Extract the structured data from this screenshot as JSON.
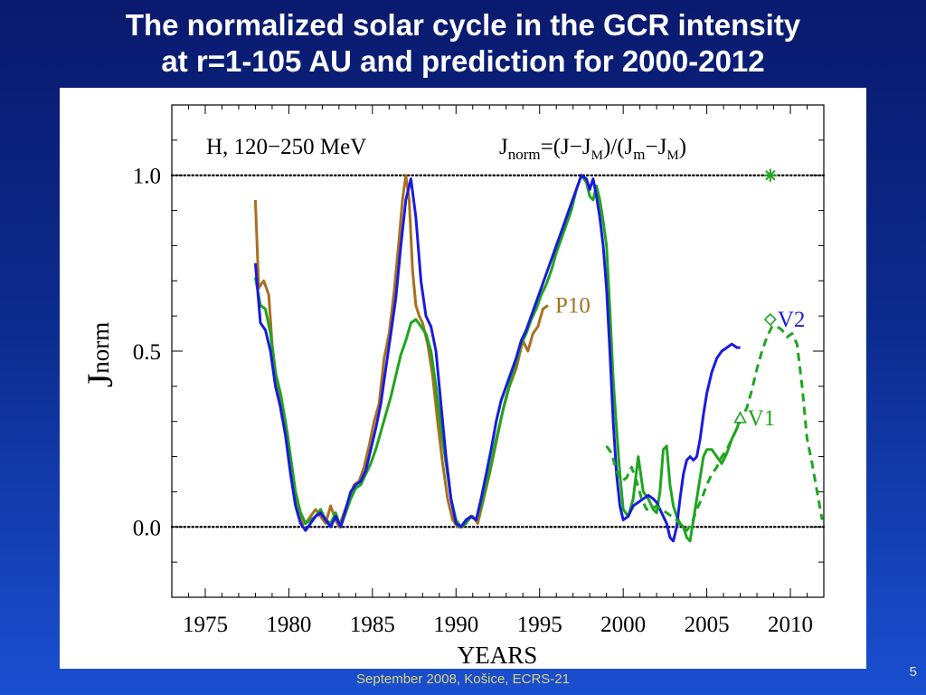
{
  "slide": {
    "title_line1": "The normalized solar cycle in the GCR intensity",
    "title_line2": "at r=1-105 AU and prediction for 2000-2012",
    "footer": "September 2008, Košice, ECRS-21",
    "page_number": "5"
  },
  "chart_data": {
    "type": "line",
    "panel_label": "H,  120−250  MeV",
    "formula": {
      "base": "J",
      "sub": "norm",
      "rest": "=(J−J",
      "sub_M": "M",
      "mid": ")/(J",
      "sub_m": "m",
      "minus": "−J",
      "sub_M2": "M",
      "close": ")"
    },
    "xlabel": "YEARS",
    "ylabel_main": "J",
    "ylabel_sub": "norm",
    "xlim": [
      1973.0,
      2012.0
    ],
    "ylim": [
      -0.2,
      1.2
    ],
    "xticks": [
      1975,
      1980,
      1985,
      1990,
      1995,
      2000,
      2005,
      2010
    ],
    "xtick_labels": [
      "1975",
      "1980",
      "1985",
      "1990",
      "1995",
      "2000",
      "2005",
      "2010"
    ],
    "yticks": [
      0.0,
      0.5,
      1.0
    ],
    "ytick_labels": [
      "0.0",
      "0.5",
      "1.0"
    ],
    "reference_lines": [
      0.0,
      1.0
    ],
    "colors": {
      "blue": "#1a1adf",
      "green": "#1fa51f",
      "brown": "#a87020",
      "black": "#000000"
    },
    "series": [
      {
        "name": "P10",
        "color": "#a87020",
        "style": "solid",
        "x": [
          1978.0,
          1978.2,
          1978.5,
          1978.8,
          1979.0,
          1979.3,
          1979.6,
          1979.9,
          1980.2,
          1980.5,
          1980.8,
          1981.0,
          1981.3,
          1981.6,
          1981.9,
          1982.2,
          1982.5,
          1982.8,
          1983.0,
          1983.3,
          1983.6,
          1983.9,
          1984.2,
          1984.5,
          1984.8,
          1985.1,
          1985.4,
          1985.7,
          1986.0,
          1986.3,
          1986.6,
          1986.8,
          1987.0,
          1987.2,
          1987.4,
          1987.6,
          1987.8,
          1988.0,
          1988.3,
          1988.6,
          1988.9,
          1989.2,
          1989.5,
          1989.8,
          1990.1,
          1990.4,
          1990.7,
          1991.0,
          1991.3,
          1991.6,
          1992.0,
          1992.4,
          1992.8,
          1993.2,
          1993.6,
          1994.0,
          1994.3,
          1994.6,
          1994.9,
          1995.2,
          1995.5
        ],
        "y": [
          0.93,
          0.68,
          0.7,
          0.66,
          0.52,
          0.4,
          0.31,
          0.27,
          0.16,
          0.06,
          0.01,
          0.01,
          0.03,
          0.05,
          0.03,
          0.01,
          0.06,
          0.02,
          0.0,
          0.04,
          0.08,
          0.12,
          0.13,
          0.17,
          0.23,
          0.3,
          0.35,
          0.48,
          0.55,
          0.67,
          0.82,
          0.93,
          1.0,
          0.93,
          0.73,
          0.63,
          0.6,
          0.58,
          0.52,
          0.43,
          0.3,
          0.18,
          0.08,
          0.02,
          0.0,
          0.0,
          0.02,
          0.03,
          0.01,
          0.07,
          0.15,
          0.24,
          0.33,
          0.4,
          0.45,
          0.53,
          0.5,
          0.55,
          0.57,
          0.62,
          0.63
        ]
      },
      {
        "name": "",
        "color": "#1fa51f",
        "style": "solid",
        "x": [
          1978.0,
          1978.3,
          1978.6,
          1978.9,
          1979.2,
          1979.5,
          1979.8,
          1980.1,
          1980.4,
          1980.7,
          1981.0,
          1981.3,
          1981.6,
          1981.9,
          1982.2,
          1982.5,
          1982.8,
          1983.1,
          1983.4,
          1983.7,
          1984.0,
          1984.3,
          1984.6,
          1984.9,
          1985.2,
          1985.5,
          1985.8,
          1986.1,
          1986.4,
          1986.7,
          1987.0,
          1987.3,
          1987.6,
          1987.9,
          1988.2,
          1988.5,
          1988.8,
          1989.1,
          1989.4,
          1989.7,
          1990.0,
          1990.3,
          1990.6,
          1990.9,
          1991.2,
          1991.5,
          1991.8,
          1992.1,
          1992.4,
          1992.7,
          1993.0,
          1993.3,
          1993.6,
          1993.9,
          1994.2,
          1994.5,
          1994.8,
          1995.1,
          1995.4,
          1995.7,
          1996.0,
          1996.3,
          1996.6,
          1996.9,
          1997.2,
          1997.5,
          1997.8,
          1998.0,
          1998.2,
          1998.4,
          1998.6,
          1998.8,
          1999.0,
          1999.2,
          1999.4,
          1999.6,
          1999.8,
          2000.0,
          2000.3,
          2000.6,
          2000.9,
          2001.2,
          2001.5,
          2001.8,
          2002.0,
          2002.2,
          2002.4,
          2002.6,
          2002.8,
          2003.0,
          2003.2,
          2003.4,
          2003.6,
          2003.8,
          2004.0,
          2004.2,
          2004.4,
          2004.6,
          2004.8,
          2005.0,
          2005.3,
          2005.6,
          2005.9,
          2006.2,
          2006.5,
          2006.8,
          2007.0
        ],
        "y": [
          0.71,
          0.63,
          0.62,
          0.55,
          0.44,
          0.38,
          0.3,
          0.2,
          0.1,
          0.04,
          0.01,
          0.02,
          0.03,
          0.05,
          0.02,
          0.01,
          0.04,
          0.0,
          0.04,
          0.08,
          0.11,
          0.12,
          0.15,
          0.18,
          0.22,
          0.27,
          0.32,
          0.37,
          0.43,
          0.49,
          0.53,
          0.58,
          0.59,
          0.57,
          0.55,
          0.5,
          0.4,
          0.28,
          0.18,
          0.08,
          0.02,
          0.0,
          0.01,
          0.03,
          0.02,
          0.06,
          0.12,
          0.18,
          0.25,
          0.31,
          0.37,
          0.42,
          0.47,
          0.52,
          0.55,
          0.59,
          0.62,
          0.66,
          0.69,
          0.73,
          0.78,
          0.82,
          0.86,
          0.9,
          0.96,
          1.0,
          0.98,
          0.94,
          0.93,
          0.97,
          0.93,
          0.87,
          0.8,
          0.62,
          0.42,
          0.28,
          0.15,
          0.05,
          0.03,
          0.08,
          0.2,
          0.1,
          0.08,
          0.05,
          0.04,
          0.1,
          0.22,
          0.23,
          0.12,
          0.06,
          0.03,
          0.01,
          0.0,
          -0.03,
          -0.04,
          0.02,
          0.08,
          0.14,
          0.2,
          0.22,
          0.22,
          0.2,
          0.18,
          0.21,
          0.25,
          0.28,
          0.31
        ]
      },
      {
        "name": "",
        "color": "#1a1adf",
        "style": "solid",
        "x": [
          1978.0,
          1978.3,
          1978.6,
          1978.9,
          1979.2,
          1979.5,
          1979.8,
          1980.1,
          1980.4,
          1980.7,
          1981.0,
          1981.3,
          1981.6,
          1981.9,
          1982.2,
          1982.5,
          1982.8,
          1983.1,
          1983.4,
          1983.7,
          1984.0,
          1984.3,
          1984.6,
          1984.9,
          1985.2,
          1985.5,
          1985.8,
          1986.1,
          1986.4,
          1986.7,
          1987.0,
          1987.3,
          1987.6,
          1987.9,
          1988.2,
          1988.5,
          1988.8,
          1989.1,
          1989.4,
          1989.7,
          1990.0,
          1990.3,
          1990.6,
          1990.9,
          1991.2,
          1991.5,
          1991.8,
          1992.1,
          1992.4,
          1992.7,
          1993.0,
          1993.3,
          1993.6,
          1993.9,
          1994.2,
          1994.5,
          1994.8,
          1995.1,
          1995.4,
          1995.7,
          1996.0,
          1996.3,
          1996.6,
          1996.9,
          1997.2,
          1997.5,
          1997.8,
          1998.0,
          1998.2,
          1998.4,
          1998.6,
          1998.8,
          1999.0,
          1999.2,
          1999.4,
          1999.6,
          1999.8,
          2000.0,
          2000.3,
          2000.6,
          2000.9,
          2001.2,
          2001.5,
          2001.8,
          2002.0,
          2002.2,
          2002.4,
          2002.6,
          2002.8,
          2003.0,
          2003.2,
          2003.4,
          2003.6,
          2003.8,
          2004.0,
          2004.2,
          2004.4,
          2004.6,
          2004.8,
          2005.0,
          2005.3,
          2005.6,
          2005.9,
          2006.2,
          2006.5,
          2006.8,
          2007.0
        ],
        "y": [
          0.75,
          0.58,
          0.56,
          0.5,
          0.4,
          0.34,
          0.26,
          0.15,
          0.06,
          0.01,
          -0.01,
          0.01,
          0.03,
          0.04,
          0.02,
          0.0,
          0.03,
          0.0,
          0.05,
          0.1,
          0.12,
          0.13,
          0.16,
          0.22,
          0.28,
          0.35,
          0.45,
          0.55,
          0.65,
          0.8,
          0.93,
          0.99,
          0.88,
          0.7,
          0.6,
          0.57,
          0.5,
          0.35,
          0.2,
          0.08,
          0.01,
          0.0,
          0.02,
          0.03,
          0.02,
          0.08,
          0.15,
          0.22,
          0.3,
          0.36,
          0.4,
          0.44,
          0.48,
          0.53,
          0.56,
          0.6,
          0.64,
          0.68,
          0.72,
          0.76,
          0.8,
          0.84,
          0.88,
          0.92,
          0.96,
          1.0,
          0.99,
          0.96,
          0.99,
          0.94,
          0.88,
          0.8,
          0.68,
          0.5,
          0.3,
          0.15,
          0.06,
          0.02,
          0.03,
          0.06,
          0.07,
          0.08,
          0.09,
          0.08,
          0.07,
          0.05,
          0.03,
          0.01,
          -0.03,
          -0.04,
          0.0,
          0.08,
          0.15,
          0.19,
          0.2,
          0.19,
          0.2,
          0.25,
          0.32,
          0.38,
          0.44,
          0.48,
          0.5,
          0.51,
          0.52,
          0.51,
          0.51
        ]
      },
      {
        "name": "",
        "color": "#1fa51f",
        "style": "dashed",
        "x": [
          1999.0,
          1999.3,
          1999.6,
          1999.9,
          2000.2,
          2000.5,
          2000.8,
          2001.1,
          2001.4,
          2001.7,
          2002.0,
          2002.3,
          2002.6,
          2002.9,
          2003.2,
          2003.5,
          2003.8,
          2004.1,
          2004.4,
          2004.7,
          2005.0,
          2005.3,
          2005.6,
          2005.9,
          2006.2,
          2006.5,
          2006.8,
          2007.1,
          2007.4,
          2007.7,
          2008.0,
          2008.3,
          2008.6,
          2008.9,
          2009.2,
          2009.5,
          2009.8,
          2010.1,
          2010.4,
          2010.7,
          2011.0,
          2011.3,
          2011.6,
          2011.9
        ],
        "y": [
          0.23,
          0.21,
          0.16,
          0.13,
          0.14,
          0.17,
          0.13,
          0.08,
          0.05,
          0.05,
          0.06,
          0.05,
          0.04,
          0.03,
          0.02,
          0.0,
          -0.01,
          0.01,
          0.05,
          0.08,
          0.12,
          0.15,
          0.17,
          0.2,
          0.22,
          0.25,
          0.28,
          0.31,
          0.34,
          0.39,
          0.45,
          0.5,
          0.54,
          0.57,
          0.57,
          0.56,
          0.54,
          0.55,
          0.52,
          0.4,
          0.25,
          0.18,
          0.1,
          0.02
        ]
      }
    ],
    "markers": [
      {
        "label": "P10",
        "x": 1995.5,
        "y": 0.63,
        "shape": "none",
        "color": "#a87020"
      },
      {
        "label": "V2",
        "x": 2008.8,
        "y": 0.59,
        "shape": "diamond",
        "color": "#1fa51f",
        "label_color": "#1a1adf"
      },
      {
        "label": "V1",
        "x": 2007.0,
        "y": 0.31,
        "shape": "triangle",
        "color": "#1fa51f"
      },
      {
        "label": "",
        "x": 2008.8,
        "y": 1.0,
        "shape": "star",
        "color": "#1fa51f"
      }
    ]
  }
}
